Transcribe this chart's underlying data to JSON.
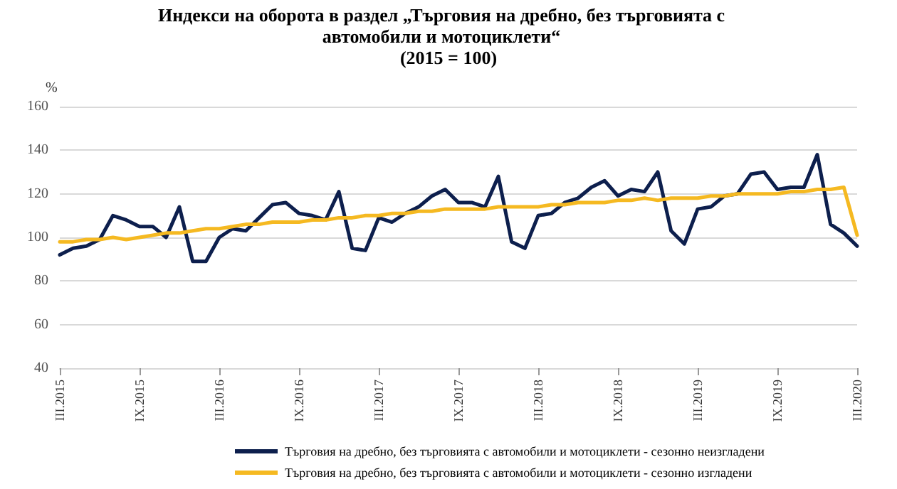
{
  "chart_data": {
    "type": "line",
    "title": "Индекси на оборота в раздел „Търговия на дребно, без търговията с автомобили и мотоциклети“",
    "subtitle": "(2015 = 100)",
    "ylabel": "%",
    "categories": [
      "III.2015",
      null,
      null,
      null,
      null,
      null,
      "IX.2015",
      null,
      null,
      null,
      null,
      null,
      "III.2016",
      null,
      null,
      null,
      null,
      null,
      "IX.2016",
      null,
      null,
      null,
      null,
      null,
      "III.2017",
      null,
      null,
      null,
      null,
      null,
      "IX.2017",
      null,
      null,
      null,
      null,
      null,
      "III.2018",
      null,
      null,
      null,
      null,
      null,
      "IX.2018",
      null,
      null,
      null,
      null,
      null,
      "III.2019",
      null,
      null,
      null,
      null,
      null,
      "IX.2019",
      null,
      null,
      null,
      null,
      null,
      "III.2020"
    ],
    "series": [
      {
        "name": "Търговия на дребно, без търговията с автомобили и мотоциклети - сезонно неизгладени",
        "color": "#0d1f4d",
        "values": [
          92,
          95,
          96,
          99,
          110,
          108,
          105,
          105,
          100,
          114,
          89,
          89,
          100,
          104,
          103,
          109,
          115,
          116,
          111,
          110,
          108,
          121,
          95,
          94,
          109,
          107,
          111,
          114,
          119,
          122,
          116,
          116,
          114,
          128,
          98,
          95,
          110,
          111,
          116,
          118,
          123,
          126,
          119,
          122,
          121,
          130,
          103,
          97,
          113,
          114,
          119,
          120,
          129,
          130,
          122,
          123,
          123,
          138,
          106,
          102,
          96
        ]
      },
      {
        "name": "Търговия на дребно, без търговията с автомобили и мотоциклети - сезонно изгладени",
        "color": "#f5b921",
        "values": [
          98,
          98,
          99,
          99,
          100,
          99,
          100,
          101,
          102,
          102,
          103,
          104,
          104,
          105,
          106,
          106,
          107,
          107,
          107,
          108,
          108,
          109,
          109,
          110,
          110,
          111,
          111,
          112,
          112,
          113,
          113,
          113,
          113,
          114,
          114,
          114,
          114,
          115,
          115,
          116,
          116,
          116,
          117,
          117,
          118,
          117,
          118,
          118,
          118,
          119,
          119,
          120,
          120,
          120,
          120,
          121,
          121,
          122,
          122,
          123,
          101
        ]
      }
    ],
    "ylim": [
      40,
      160
    ],
    "yticks": [
      40,
      60,
      80,
      100,
      120,
      140,
      160
    ],
    "grid": "y",
    "legend": "bottom",
    "marker": "none",
    "line_style": "solid"
  }
}
